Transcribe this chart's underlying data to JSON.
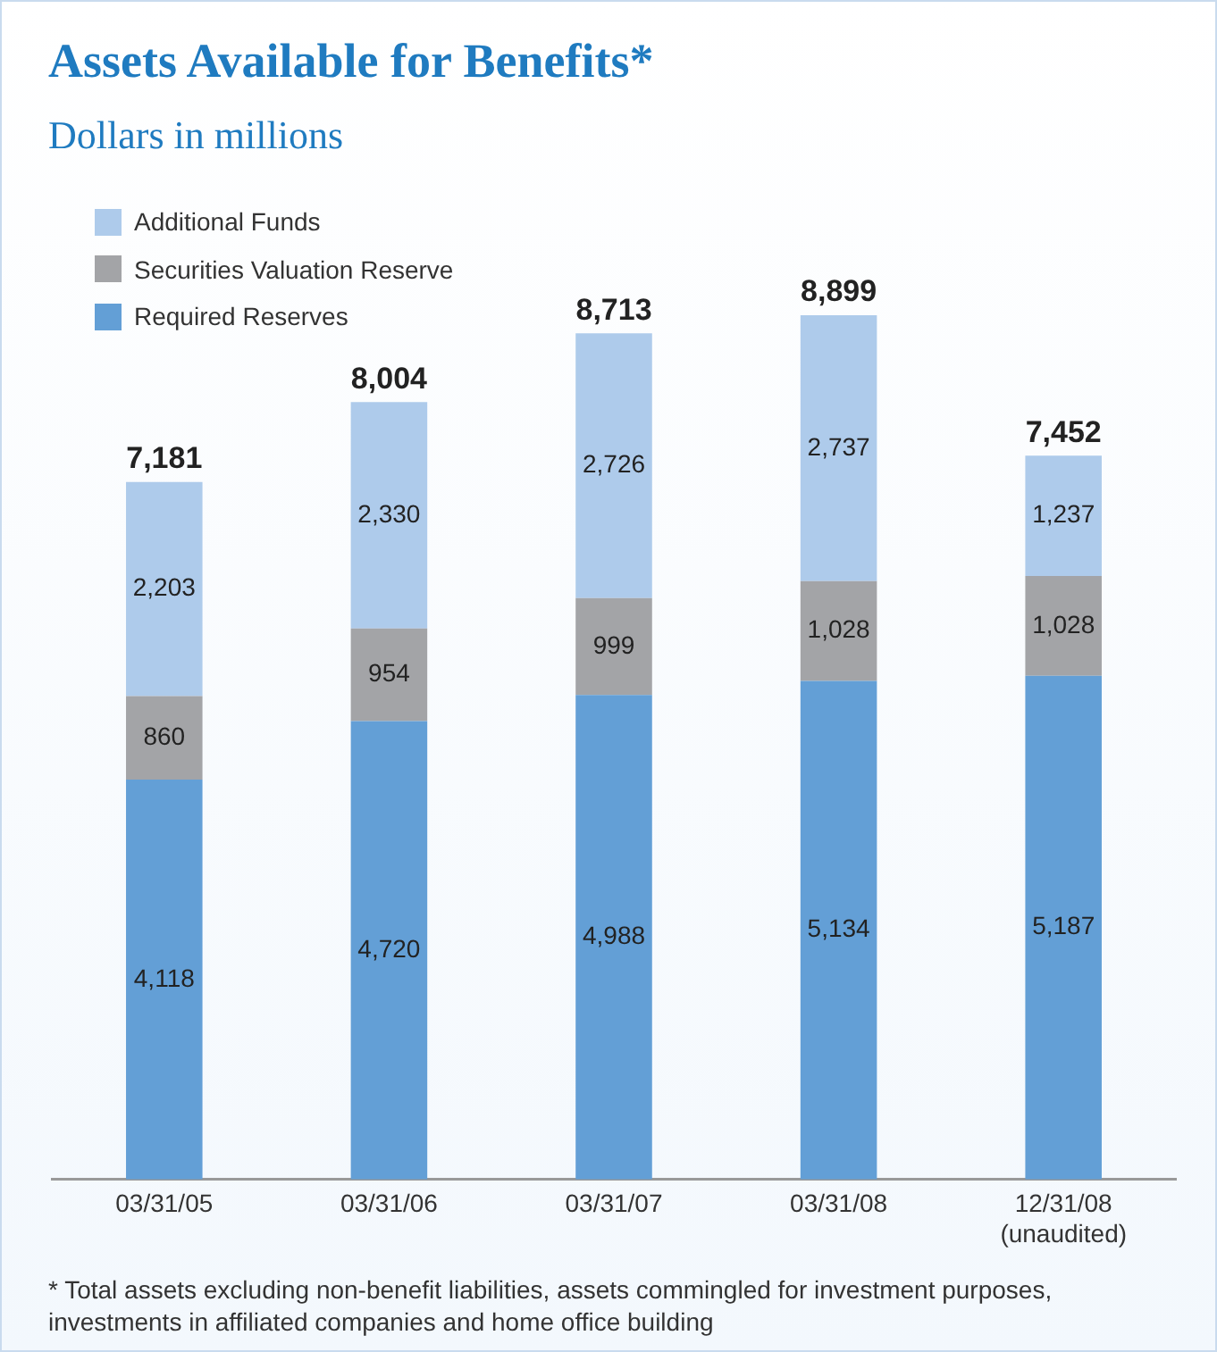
{
  "chart_data": {
    "type": "bar",
    "title": "Assets Available for Benefits*",
    "subtitle": "Dollars in millions",
    "categories": [
      "03/31/05",
      "03/31/06",
      "03/31/07",
      "03/31/08",
      "12/31/08\n(unaudited)"
    ],
    "stacked": true,
    "series": [
      {
        "name": "Required Reserves",
        "color": "#639fd6",
        "values": [
          4118,
          4720,
          4988,
          5134,
          5187
        ],
        "value_labels": [
          "4,118",
          "4,720",
          "4,988",
          "5,134",
          "5,187"
        ]
      },
      {
        "name": "Securities Valuation Reserve",
        "color": "#a3a4a7",
        "values": [
          860,
          954,
          999,
          1028,
          1028
        ],
        "value_labels": [
          "860",
          "954",
          "999",
          "1,028",
          "1,028"
        ]
      },
      {
        "name": "Additional Funds",
        "color": "#aecbeb",
        "values": [
          2203,
          2330,
          2726,
          2737,
          1237
        ],
        "value_labels": [
          "2,203",
          "2,330",
          "2,726",
          "2,737",
          "1,237"
        ]
      }
    ],
    "totals": [
      "7,181",
      "8,004",
      "8,713",
      "8,899",
      "7,452"
    ],
    "legend": "top left",
    "grid": false,
    "annotations": [
      "* Total assets excluding non-benefit liabilities, assets commingled for investment purposes, investments in affiliated companies and home office building"
    ]
  }
}
